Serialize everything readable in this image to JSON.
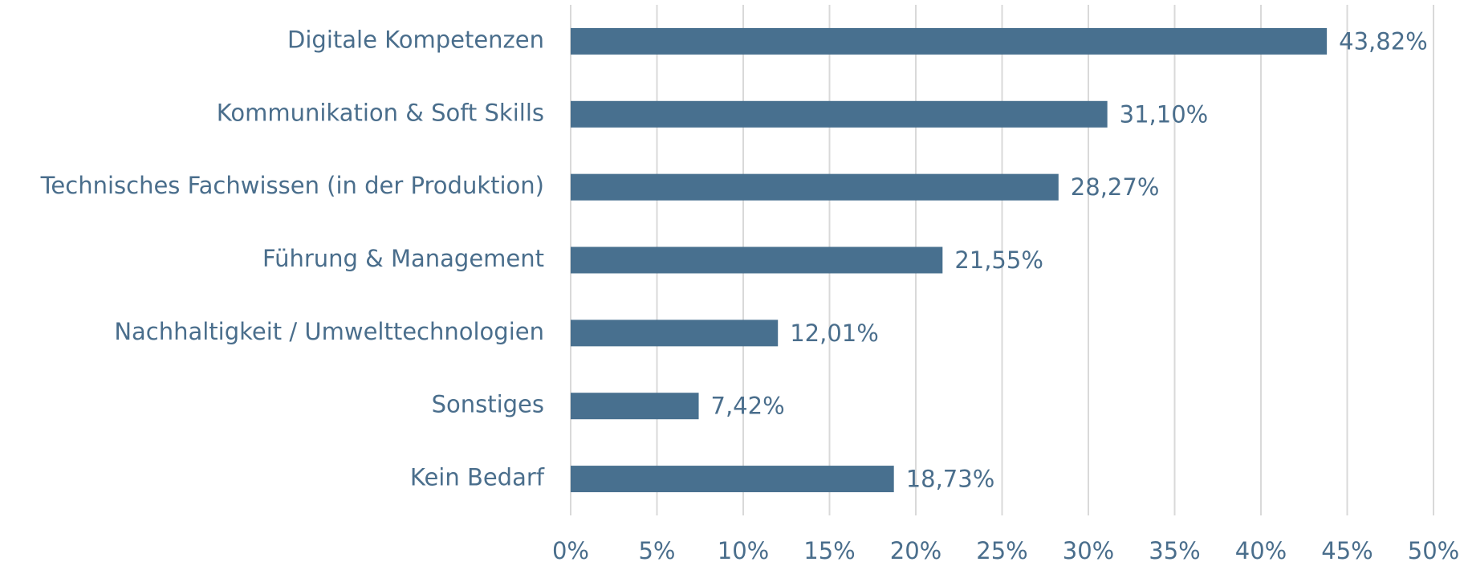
{
  "chart_data": {
    "type": "bar",
    "orientation": "horizontal",
    "categories": [
      "Digitale Kompetenzen",
      "Kommunikation & Soft Skills",
      "Technisches Fachwissen (in der Produktion)",
      "Führung & Management",
      "Nachhaltigkeit / Umwelttechnologien",
      "Sonstiges",
      "Kein Bedarf"
    ],
    "values": [
      43.82,
      31.1,
      28.27,
      21.55,
      12.01,
      7.42,
      18.73
    ],
    "value_labels": [
      "43,82%",
      "31,10%",
      "28,27%",
      "21,55%",
      "12,01%",
      "7,42%",
      "18,73%"
    ],
    "color": "#48708f",
    "xlim": [
      0,
      50
    ],
    "xticks": [
      {
        "value": 0,
        "label": "0%"
      },
      {
        "value": 5,
        "label": "5%"
      },
      {
        "value": 10,
        "label": "10%"
      },
      {
        "value": 15,
        "label": "15%"
      },
      {
        "value": 20,
        "label": "20%"
      },
      {
        "value": 25,
        "label": "25%"
      },
      {
        "value": 30,
        "label": "30%"
      },
      {
        "value": 35,
        "label": "35%"
      },
      {
        "value": 40,
        "label": "40%"
      },
      {
        "value": 45,
        "label": "45%"
      },
      {
        "value": 50,
        "label": "50%"
      }
    ],
    "grid": true
  }
}
